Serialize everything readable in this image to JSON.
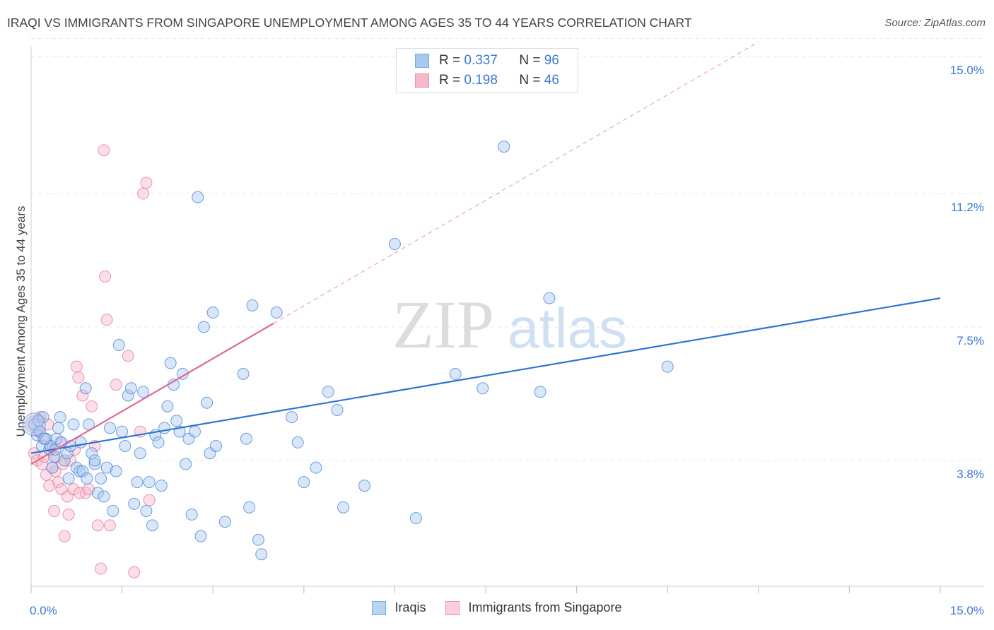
{
  "header": {
    "title": "IRAQI VS IMMIGRANTS FROM SINGAPORE UNEMPLOYMENT AMONG AGES 35 TO 44 YEARS CORRELATION CHART",
    "source": "Source: ZipAtlas.com"
  },
  "watermark": {
    "zip": "ZIP",
    "atlas": "atlas"
  },
  "legend": {
    "rows": [
      {
        "r_label": "R =",
        "r_value": "0.337",
        "n_label": "N =",
        "n_value": "96",
        "color": "#a9c8f0"
      },
      {
        "r_label": "R =",
        "r_value": "0.198",
        "n_label": "N =",
        "n_value": "46",
        "color": "#f7b8cb"
      }
    ]
  },
  "bottom_legend": {
    "series1": "Iraqis",
    "series2": "Immigrants from Singapore"
  },
  "chart_data": {
    "type": "scatter",
    "title": "IRAQI VS IMMIGRANTS FROM SINGAPORE UNEMPLOYMENT AMONG AGES 35 TO 44 YEARS CORRELATION CHART",
    "xlabel": "",
    "ylabel": "Unemployment Among Ages 35 to 44 years",
    "xlim": [
      0,
      15
    ],
    "ylim": [
      0,
      15.5
    ],
    "x_tick_labels": [
      "0.0%",
      "15.0%"
    ],
    "y_ticks": [
      3.8,
      7.5,
      11.2,
      15.0
    ],
    "y_tick_labels": [
      "3.8%",
      "7.5%",
      "11.2%",
      "15.0%"
    ],
    "grid": true,
    "legend_position": "top-center",
    "colors": {
      "iraqis": "#4a86d8",
      "singapore": "#e87097",
      "iraqis_fill": "#a9c8f0",
      "singapore_fill": "#f7b8cb"
    },
    "series": [
      {
        "name": "Iraqis",
        "r": 0.337,
        "n": 96,
        "trend": {
          "x": [
            0.0,
            15.0
          ],
          "y": [
            4.0,
            8.3
          ]
        },
        "points": [
          [
            0.05,
            4.8
          ],
          [
            0.1,
            4.5
          ],
          [
            0.15,
            4.6
          ],
          [
            0.18,
            4.2
          ],
          [
            0.2,
            5.0
          ],
          [
            0.25,
            4.4
          ],
          [
            0.3,
            4.1
          ],
          [
            0.32,
            4.2
          ],
          [
            0.38,
            3.9
          ],
          [
            0.4,
            4.1
          ],
          [
            0.42,
            4.4
          ],
          [
            0.45,
            4.7
          ],
          [
            0.48,
            5.0
          ],
          [
            0.5,
            4.3
          ],
          [
            0.55,
            3.8
          ],
          [
            0.6,
            4.0
          ],
          [
            0.62,
            3.3
          ],
          [
            0.65,
            4.2
          ],
          [
            0.7,
            4.8
          ],
          [
            0.75,
            3.6
          ],
          [
            0.8,
            3.5
          ],
          [
            0.82,
            4.3
          ],
          [
            0.85,
            3.5
          ],
          [
            0.9,
            5.8
          ],
          [
            0.92,
            3.3
          ],
          [
            0.95,
            4.8
          ],
          [
            1.0,
            4.0
          ],
          [
            1.05,
            3.7
          ],
          [
            1.1,
            2.9
          ],
          [
            1.15,
            3.3
          ],
          [
            1.2,
            2.8
          ],
          [
            1.25,
            3.6
          ],
          [
            1.3,
            4.7
          ],
          [
            1.35,
            2.4
          ],
          [
            1.4,
            3.5
          ],
          [
            1.45,
            7.0
          ],
          [
            1.5,
            4.6
          ],
          [
            1.55,
            4.2
          ],
          [
            1.6,
            5.6
          ],
          [
            1.65,
            5.8
          ],
          [
            1.7,
            2.6
          ],
          [
            1.75,
            3.2
          ],
          [
            1.8,
            4.0
          ],
          [
            1.85,
            5.7
          ],
          [
            1.9,
            2.4
          ],
          [
            1.95,
            3.2
          ],
          [
            2.0,
            2.0
          ],
          [
            2.05,
            4.5
          ],
          [
            2.1,
            4.3
          ],
          [
            2.15,
            3.1
          ],
          [
            2.2,
            4.7
          ],
          [
            2.25,
            5.3
          ],
          [
            2.3,
            6.5
          ],
          [
            2.35,
            5.9
          ],
          [
            2.4,
            4.9
          ],
          [
            2.45,
            4.6
          ],
          [
            2.5,
            6.2
          ],
          [
            2.55,
            3.7
          ],
          [
            2.6,
            4.4
          ],
          [
            2.65,
            2.3
          ],
          [
            2.7,
            4.6
          ],
          [
            2.75,
            11.1
          ],
          [
            2.8,
            1.7
          ],
          [
            2.85,
            7.5
          ],
          [
            2.9,
            5.4
          ],
          [
            2.95,
            4.0
          ],
          [
            3.0,
            7.9
          ],
          [
            3.05,
            4.2
          ],
          [
            3.2,
            2.1
          ],
          [
            3.5,
            6.2
          ],
          [
            3.55,
            4.4
          ],
          [
            3.6,
            2.5
          ],
          [
            3.65,
            8.1
          ],
          [
            3.75,
            1.6
          ],
          [
            3.8,
            1.2
          ],
          [
            4.05,
            7.9
          ],
          [
            4.3,
            5.0
          ],
          [
            4.4,
            4.3
          ],
          [
            4.5,
            3.2
          ],
          [
            4.7,
            3.6
          ],
          [
            4.9,
            5.7
          ],
          [
            5.05,
            5.2
          ],
          [
            5.15,
            2.5
          ],
          [
            5.5,
            3.1
          ],
          [
            6.0,
            9.8
          ],
          [
            6.35,
            2.2
          ],
          [
            7.0,
            6.2
          ],
          [
            7.45,
            5.8
          ],
          [
            7.8,
            12.5
          ],
          [
            8.4,
            5.7
          ],
          [
            8.55,
            8.3
          ],
          [
            10.5,
            6.4
          ],
          [
            0.12,
            4.9
          ],
          [
            0.22,
            4.4
          ],
          [
            1.05,
            3.8
          ],
          [
            0.35,
            3.6
          ]
        ]
      },
      {
        "name": "Immigrants from Singapore",
        "r": 0.198,
        "n": 46,
        "trend": {
          "x": [
            0.0,
            4.0
          ],
          "y": [
            3.7,
            7.6
          ]
        },
        "points": [
          [
            0.05,
            4.0
          ],
          [
            0.1,
            3.8
          ],
          [
            0.12,
            4.6
          ],
          [
            0.15,
            5.0
          ],
          [
            0.18,
            3.7
          ],
          [
            0.2,
            4.4
          ],
          [
            0.22,
            3.9
          ],
          [
            0.25,
            3.4
          ],
          [
            0.28,
            4.8
          ],
          [
            0.3,
            3.1
          ],
          [
            0.32,
            4.2
          ],
          [
            0.35,
            3.6
          ],
          [
            0.38,
            2.4
          ],
          [
            0.4,
            3.5
          ],
          [
            0.42,
            3.9
          ],
          [
            0.45,
            3.2
          ],
          [
            0.48,
            4.3
          ],
          [
            0.5,
            3.0
          ],
          [
            0.52,
            3.7
          ],
          [
            0.55,
            1.7
          ],
          [
            0.6,
            2.8
          ],
          [
            0.62,
            2.3
          ],
          [
            0.65,
            3.8
          ],
          [
            0.7,
            3.0
          ],
          [
            0.72,
            4.1
          ],
          [
            0.75,
            6.4
          ],
          [
            0.78,
            6.1
          ],
          [
            0.8,
            2.9
          ],
          [
            0.85,
            5.6
          ],
          [
            0.9,
            2.9
          ],
          [
            0.95,
            3.0
          ],
          [
            1.0,
            5.3
          ],
          [
            1.05,
            4.2
          ],
          [
            1.1,
            2.0
          ],
          [
            1.15,
            0.8
          ],
          [
            1.2,
            12.4
          ],
          [
            1.22,
            8.9
          ],
          [
            1.25,
            7.7
          ],
          [
            1.3,
            2.0
          ],
          [
            1.4,
            5.9
          ],
          [
            1.6,
            6.7
          ],
          [
            1.7,
            0.7
          ],
          [
            1.8,
            4.6
          ],
          [
            1.85,
            11.2
          ],
          [
            1.9,
            11.5
          ],
          [
            1.95,
            2.7
          ]
        ]
      }
    ]
  }
}
